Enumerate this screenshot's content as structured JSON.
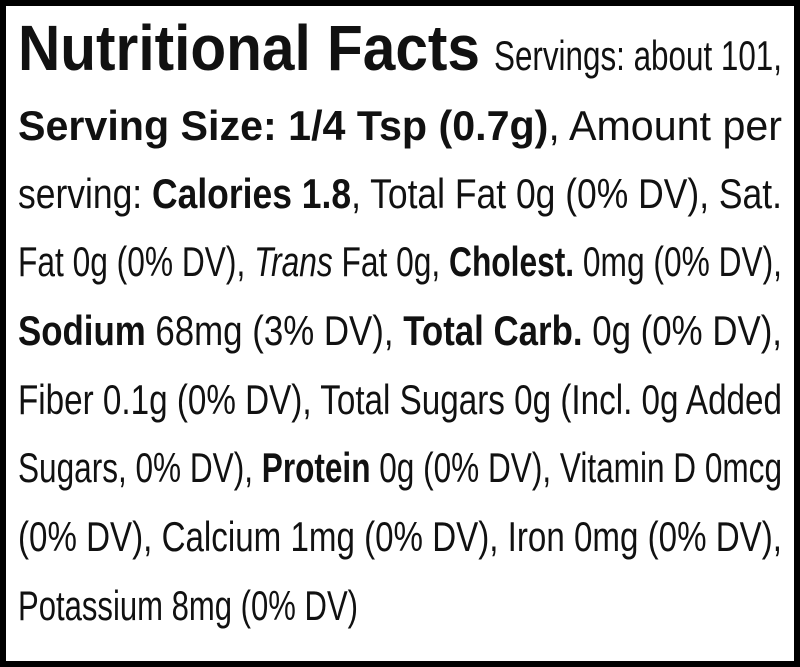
{
  "title": "Nutritional Facts",
  "lines": [
    [
      "Servings: about 101,"
    ],
    [
      "Serving Size: 1/4 Tsp (0.7g)",
      ", Amount per"
    ],
    [
      "serving: ",
      "Calories 1.8",
      ", Total Fat 0g (0% DV), Sat."
    ],
    [
      "Fat 0g (0% DV), ",
      "Trans",
      " Fat 0g, ",
      "Cholest.",
      " 0mg (0% DV),"
    ],
    [
      "Sodium",
      " 68mg (3% DV), ",
      "Total Carb.",
      " 0g (0% DV),"
    ],
    [
      "Fiber 0.1g (0% DV), Total Sugars 0g (Incl. 0g Added"
    ],
    [
      "Sugars, 0% DV), ",
      "Protein",
      " 0g (0% DV), Vitamin D 0mcg"
    ],
    [
      "(0% DV), Calcium 1mg (0% DV), Iron 0mg (0% DV),"
    ],
    [
      "Potassium 8mg (0% DV)"
    ]
  ]
}
